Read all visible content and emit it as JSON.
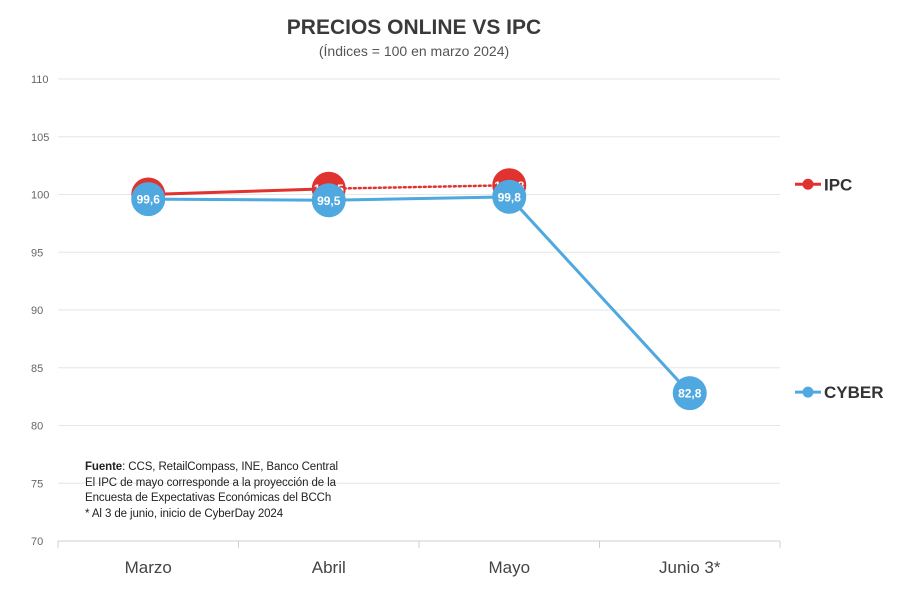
{
  "chart_data": {
    "type": "line",
    "title": "PRECIOS ONLINE VS IPC",
    "subtitle": "(Índices = 100 en marzo 2024)",
    "categories": [
      "Marzo",
      "Abril",
      "Mayo",
      "Junio 3*"
    ],
    "ylim": [
      70,
      110
    ],
    "yticks": [
      70,
      75,
      80,
      85,
      90,
      95,
      100,
      105,
      110
    ],
    "grid": true,
    "legend_position": "right",
    "series": [
      {
        "name": "IPC",
        "color": "#e0322e",
        "values": [
          100,
          100.5,
          100.8,
          null
        ],
        "labels": [
          "",
          "100,5",
          "100,8",
          ""
        ],
        "dotted_from_index": 1
      },
      {
        "name": "CYBER",
        "color": "#4fa8df",
        "values": [
          99.6,
          99.5,
          99.8,
          82.8
        ],
        "labels": [
          "99,6",
          "99,5",
          "99,8",
          "82,8"
        ]
      }
    ]
  },
  "notes": {
    "source_label": "Fuente",
    "source_text": ": CCS, RetailCompass, INE, Banco Central",
    "line2": "El IPC de mayo corresponde a la proyección de la",
    "line3": "Encuesta de Expectativas Económicas del BCCh",
    "line4": "* Al 3 de junio, inicio de CyberDay 2024"
  }
}
